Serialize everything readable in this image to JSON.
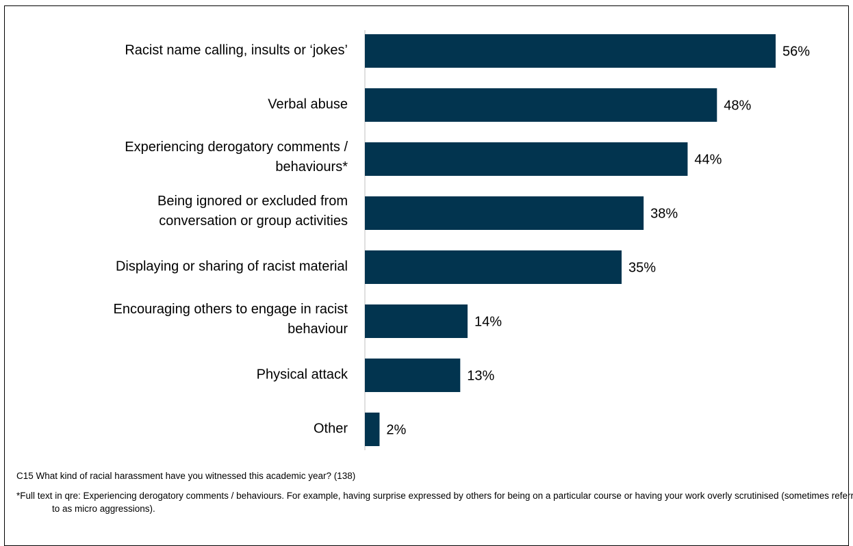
{
  "chart_data": {
    "type": "bar",
    "orientation": "horizontal",
    "categories": [
      [
        "Racist name calling, insults or ‘jokes’"
      ],
      [
        "Verbal abuse"
      ],
      [
        "Experiencing derogatory comments /",
        "behaviours*"
      ],
      [
        "Being ignored or excluded from",
        "conversation or group activities"
      ],
      [
        "Displaying or sharing of racist material"
      ],
      [
        "Encouraging others to engage in racist",
        "behaviour"
      ],
      [
        "Physical attack"
      ],
      [
        "Other"
      ]
    ],
    "values": [
      56,
      48,
      44,
      38,
      35,
      14,
      13,
      2
    ],
    "value_labels": [
      "56%",
      "48%",
      "44%",
      "38%",
      "35%",
      "14%",
      "13%",
      "2%"
    ],
    "unit": "%",
    "xlim": [
      0,
      56
    ],
    "title": "",
    "xlabel": "",
    "ylabel": "",
    "grid": false,
    "legend": "none",
    "bar_color": "#02344f"
  },
  "footnotes": {
    "question": "C15 What kind of racial harassment have you witnessed this academic year? (138)",
    "full_text": "*Full text in qre: Experiencing derogatory comments / behaviours. For example, having surprise expressed by others for being on a particular course or having your work overly scrutinised (sometimes referred to as micro aggressions)."
  }
}
